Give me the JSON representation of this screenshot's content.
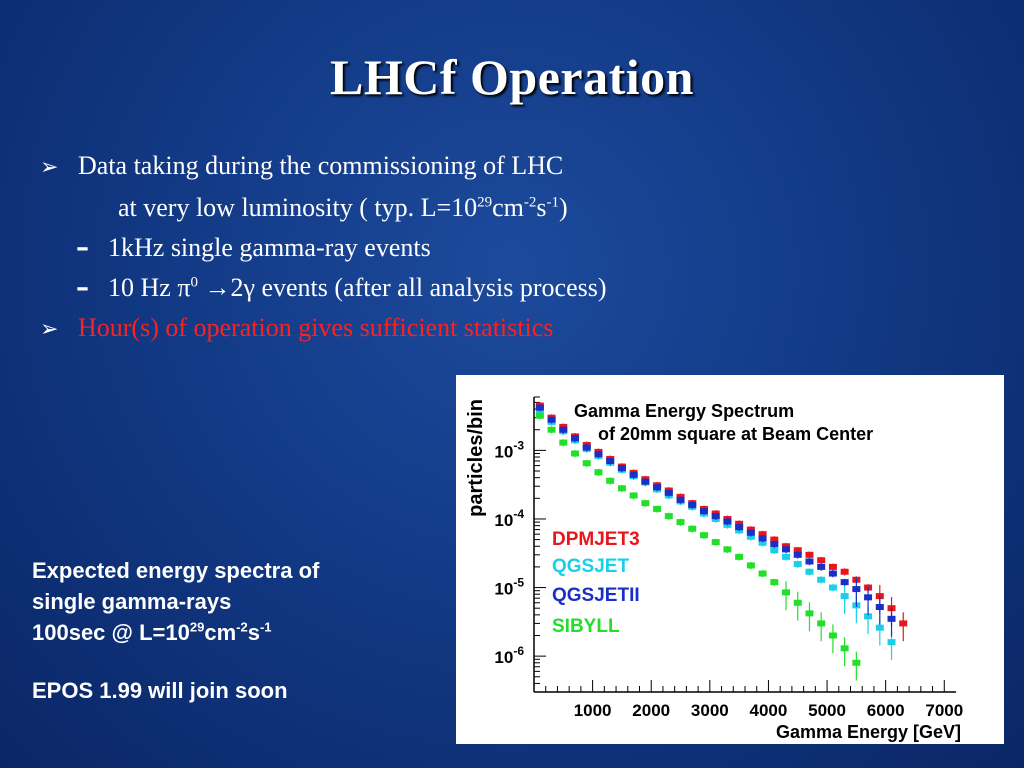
{
  "slide": {
    "title": "LHCf Operation",
    "bullets": {
      "b1_line1": "Data taking during the commissioning of LHC",
      "b1_line2_pre": "at very low luminosity ( typ. L=10",
      "b1_line2_sup1": "29",
      "b1_line2_mid": "cm",
      "b1_line2_sup2": "-2",
      "b1_line2_mid2": "s",
      "b1_line2_sup3": "-1",
      "b1_line2_post": ")",
      "d1": "1kHz single gamma-ray events",
      "d2_pre": "10 Hz π",
      "d2_sup": "0",
      "d2_post": " →2γ events (after all analysis process)",
      "b2": "Hour(s) of operation gives sufficient statistics"
    },
    "caption": {
      "line1": "Expected energy spectra of",
      "line2": "single gamma-rays",
      "line3_pre": "100sec @ L=10",
      "line3_sup1": "29",
      "line3_mid": "cm",
      "line3_sup2": "-2",
      "line3_mid2": "s",
      "line3_sup3": "-1",
      "epos": "EPOS 1.99 will join soon"
    }
  },
  "chart_data": {
    "type": "scatter",
    "title": "Gamma Energy Spectrum",
    "subtitle": "of 20mm square at Beam Center",
    "xlabel": "Gamma Energy [GeV]",
    "ylabel": "particles/bin",
    "xlim": [
      0,
      7200
    ],
    "ylim": [
      3e-07,
      0.006
    ],
    "yscale": "log",
    "x_ticks": [
      "1000",
      "2000",
      "3000",
      "4000",
      "5000",
      "6000",
      "7000"
    ],
    "x_tick_values": [
      1000,
      2000,
      3000,
      4000,
      5000,
      6000,
      7000
    ],
    "y_ticks": [
      {
        "base": "10",
        "exp": "-3"
      },
      {
        "base": "10",
        "exp": "-4"
      },
      {
        "base": "10",
        "exp": "-5"
      },
      {
        "base": "10",
        "exp": "-6"
      }
    ],
    "y_tick_values": [
      0.001,
      0.0001,
      1e-05,
      1e-06
    ],
    "legend_position": "center-left",
    "series": [
      {
        "name": "DPMJET3",
        "color": "#e8151b",
        "x": [
          100,
          300,
          500,
          700,
          900,
          1100,
          1300,
          1500,
          1700,
          1900,
          2100,
          2300,
          2500,
          2700,
          2900,
          3100,
          3300,
          3500,
          3700,
          3900,
          4100,
          4300,
          4500,
          4700,
          4900,
          5100,
          5300,
          5500,
          5700,
          5900,
          6100,
          6300
        ],
        "y": [
          0.0045,
          0.003,
          0.0022,
          0.0016,
          0.0012,
          0.00095,
          0.00075,
          0.00058,
          0.00047,
          0.00038,
          0.00031,
          0.00026,
          0.00021,
          0.00017,
          0.00014,
          0.00012,
          0.0001,
          8.5e-05,
          7e-05,
          6e-05,
          5e-05,
          4e-05,
          3.5e-05,
          3e-05,
          2.5e-05,
          2e-05,
          1.7e-05,
          1.3e-05,
          1e-05,
          7.5e-06,
          5e-06,
          3e-06
        ]
      },
      {
        "name": "QGSJET",
        "color": "#1ad0e8",
        "x": [
          100,
          300,
          500,
          700,
          900,
          1100,
          1300,
          1500,
          1700,
          1900,
          2100,
          2300,
          2500,
          2700,
          2900,
          3100,
          3300,
          3500,
          3700,
          3900,
          4100,
          4300,
          4500,
          4700,
          4900,
          5100,
          5300,
          5500,
          5700,
          5900,
          6100
        ],
        "y": [
          0.0038,
          0.0026,
          0.0019,
          0.0014,
          0.00105,
          0.00083,
          0.00066,
          0.00052,
          0.00042,
          0.00034,
          0.00027,
          0.00022,
          0.00018,
          0.00015,
          0.00012,
          0.0001,
          8.2e-05,
          6.8e-05,
          5.5e-05,
          4.5e-05,
          3.5e-05,
          2.8e-05,
          2.2e-05,
          1.7e-05,
          1.3e-05,
          1e-05,
          7.5e-06,
          5.5e-06,
          3.8e-06,
          2.6e-06,
          1.6e-06
        ]
      },
      {
        "name": "QGSJETII",
        "color": "#1a2fc8",
        "x": [
          100,
          300,
          500,
          700,
          900,
          1100,
          1300,
          1500,
          1700,
          1900,
          2100,
          2300,
          2500,
          2700,
          2900,
          3100,
          3300,
          3500,
          3700,
          3900,
          4100,
          4300,
          4500,
          4700,
          4900,
          5100,
          5300,
          5500,
          5700,
          5900,
          6100
        ],
        "y": [
          0.0042,
          0.0028,
          0.002,
          0.0015,
          0.0011,
          0.00088,
          0.0007,
          0.00055,
          0.00044,
          0.00035,
          0.00029,
          0.00024,
          0.00019,
          0.00016,
          0.00013,
          0.00011,
          9.2e-05,
          7.6e-05,
          6.3e-05,
          5.2e-05,
          4.3e-05,
          3.6e-05,
          3e-05,
          2.4e-05,
          2e-05,
          1.6e-05,
          1.2e-05,
          9.5e-06,
          7.2e-06,
          5.2e-06,
          3.5e-06
        ]
      },
      {
        "name": "SIBYLL",
        "color": "#22e02a",
        "x": [
          100,
          300,
          500,
          700,
          900,
          1100,
          1300,
          1500,
          1700,
          1900,
          2100,
          2300,
          2500,
          2700,
          2900,
          3100,
          3300,
          3500,
          3700,
          3900,
          4100,
          4300,
          4500,
          4700,
          4900,
          5100,
          5300,
          5500
        ],
        "y": [
          0.0032,
          0.002,
          0.0013,
          0.0009,
          0.00065,
          0.00048,
          0.00036,
          0.00028,
          0.00022,
          0.00017,
          0.00014,
          0.00011,
          9e-05,
          7.2e-05,
          5.8e-05,
          4.6e-05,
          3.6e-05,
          2.8e-05,
          2.1e-05,
          1.6e-05,
          1.2e-05,
          8.5e-06,
          6e-06,
          4.2e-06,
          3e-06,
          2e-06,
          1.3e-06,
          8e-07
        ]
      }
    ]
  }
}
